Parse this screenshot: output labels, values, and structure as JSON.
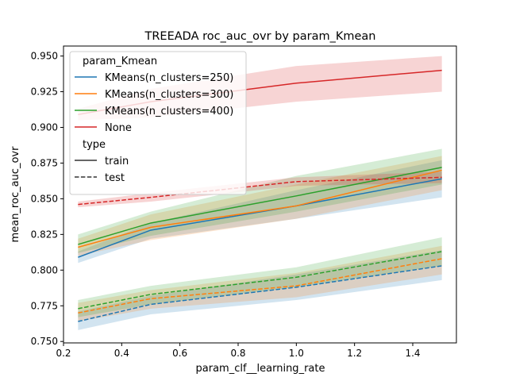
{
  "chart_data": {
    "type": "line",
    "title": "TREEADA roc_auc_ovr by param_Kmean",
    "xlabel": "param_clf__learning_rate",
    "ylabel": "mean_roc_auc_ovr",
    "xlim": [
      0.2,
      1.55
    ],
    "ylim": [
      0.749,
      0.957
    ],
    "xticks": [
      0.2,
      0.4,
      0.6,
      0.8,
      1.0,
      1.2,
      1.4
    ],
    "xtick_labels": [
      "0.2",
      "0.4",
      "0.6",
      "0.8",
      "1.0",
      "1.2",
      "1.4"
    ],
    "yticks": [
      0.75,
      0.775,
      0.8,
      0.825,
      0.85,
      0.875,
      0.9,
      0.925,
      0.95
    ],
    "ytick_labels": [
      "0.750",
      "0.775",
      "0.800",
      "0.825",
      "0.850",
      "0.875",
      "0.900",
      "0.925",
      "0.950"
    ],
    "grid": false,
    "x": [
      0.25,
      0.5,
      1.0,
      1.5
    ],
    "series": [
      {
        "kmean": "KMeans(n_clusters=250)",
        "type": "train",
        "color": "#1f77b4",
        "values": [
          0.809,
          0.828,
          0.845,
          0.864
        ],
        "lower": [
          0.805,
          0.822,
          0.836,
          0.851
        ],
        "upper": [
          0.813,
          0.833,
          0.856,
          0.877
        ]
      },
      {
        "kmean": "KMeans(n_clusters=300)",
        "type": "train",
        "color": "#ff7f0e",
        "values": [
          0.816,
          0.83,
          0.845,
          0.87
        ],
        "lower": [
          0.81,
          0.821,
          0.836,
          0.856
        ],
        "upper": [
          0.822,
          0.839,
          0.86,
          0.88
        ]
      },
      {
        "kmean": "KMeans(n_clusters=400)",
        "type": "train",
        "color": "#2ca02c",
        "values": [
          0.818,
          0.833,
          0.852,
          0.872
        ],
        "lower": [
          0.812,
          0.824,
          0.841,
          0.86
        ],
        "upper": [
          0.825,
          0.841,
          0.866,
          0.885
        ]
      },
      {
        "kmean": "None",
        "type": "train",
        "color": "#d62728",
        "values": [
          0.909,
          0.918,
          0.931,
          0.94
        ],
        "lower": [
          0.905,
          0.907,
          0.918,
          0.925
        ],
        "upper": [
          0.913,
          0.927,
          0.943,
          0.95
        ]
      },
      {
        "kmean": "KMeans(n_clusters=250)",
        "type": "test",
        "color": "#1f77b4",
        "values": [
          0.764,
          0.776,
          0.788,
          0.803
        ],
        "lower": [
          0.758,
          0.769,
          0.779,
          0.793
        ],
        "upper": [
          0.771,
          0.782,
          0.797,
          0.814
        ]
      },
      {
        "kmean": "KMeans(n_clusters=300)",
        "type": "test",
        "color": "#ff7f0e",
        "values": [
          0.77,
          0.78,
          0.789,
          0.808
        ],
        "lower": [
          0.764,
          0.773,
          0.781,
          0.797
        ],
        "upper": [
          0.777,
          0.786,
          0.798,
          0.817
        ]
      },
      {
        "kmean": "KMeans(n_clusters=400)",
        "type": "test",
        "color": "#2ca02c",
        "values": [
          0.773,
          0.783,
          0.795,
          0.813
        ],
        "lower": [
          0.767,
          0.776,
          0.788,
          0.803
        ],
        "upper": [
          0.779,
          0.789,
          0.802,
          0.823
        ]
      },
      {
        "kmean": "None",
        "type": "test",
        "color": "#d62728",
        "values": [
          0.846,
          0.851,
          0.862,
          0.865
        ],
        "lower": [
          0.844,
          0.848,
          0.859,
          0.861
        ],
        "upper": [
          0.848,
          0.854,
          0.865,
          0.869
        ]
      }
    ],
    "legend": {
      "placement": "upper-left",
      "hue_title": "param_Kmean",
      "hue_entries": [
        {
          "label": "KMeans(n_clusters=250)",
          "color": "#1f77b4"
        },
        {
          "label": "KMeans(n_clusters=300)",
          "color": "#ff7f0e"
        },
        {
          "label": "KMeans(n_clusters=400)",
          "color": "#2ca02c"
        },
        {
          "label": "None",
          "color": "#d62728"
        }
      ],
      "style_title": "type",
      "style_entries": [
        {
          "label": "train",
          "dash": "solid"
        },
        {
          "label": "test",
          "dash": "dashed"
        }
      ]
    }
  }
}
